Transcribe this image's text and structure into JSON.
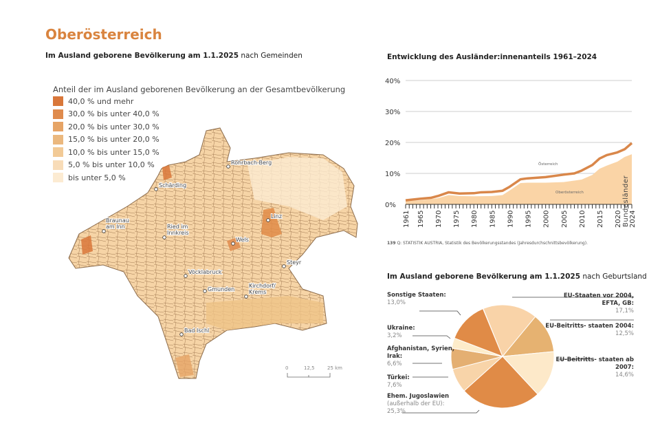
{
  "page": {
    "title": "Oberösterreich",
    "side_label": "Bundesländer"
  },
  "map": {
    "subtitle_bold": "Im Ausland geborene Bevölkerung am 1.1.2025",
    "subtitle_rest": " nach Gemeinden",
    "legend_title": "Anteil der im Ausland geborenen Bevölkerung an der Gesamtbevölkerung",
    "legend": [
      {
        "label": "40,0 % und mehr",
        "color": "#d9773a"
      },
      {
        "label": "30,0 % bis unter 40,0 %",
        "color": "#df8b4d"
      },
      {
        "label": "20,0 % bis unter 30,0 %",
        "color": "#e6a466"
      },
      {
        "label": "15,0 % bis unter 20,0 %",
        "color": "#ebb87e"
      },
      {
        "label": "10,0 % bis unter 15,0 %",
        "color": "#f2ca96"
      },
      {
        "label": "5,0 % bis unter 10,0 %",
        "color": "#f8dcb8"
      },
      {
        "label": "bis unter 5,0 %",
        "color": "#fcebd2"
      }
    ],
    "cities": [
      "Rohrbach-Berg",
      "Schärding",
      "Braunau am Inn",
      "Ried im Innkreis",
      "Linz",
      "Wels",
      "Steyr",
      "Vöcklabruck",
      "Gmunden",
      "Kirchdorf/ Krems",
      "Bad Ischl"
    ],
    "scale": [
      "0",
      "12,5",
      "25 km"
    ]
  },
  "chart_data": [
    {
      "type": "area",
      "title": "Entwicklung des Ausländer:innenanteils 1961–2024",
      "ylim": [
        0,
        40
      ],
      "yticks": [
        "0%",
        "10%",
        "20%",
        "30%",
        "40%"
      ],
      "xticks": [
        "1961",
        "1965",
        "1970",
        "1975",
        "1980",
        "1985",
        "1990",
        "1995",
        "2000",
        "2005",
        "2010",
        "2015",
        "2020",
        "2024"
      ],
      "grid": true,
      "series": [
        {
          "name": "Österreich",
          "style": "line",
          "color": "#d9874a",
          "x": [
            1961,
            1965,
            1968,
            1970,
            1973,
            1976,
            1980,
            1982,
            1985,
            1988,
            1990,
            1993,
            1995,
            2000,
            2005,
            2008,
            2010,
            2013,
            2015,
            2017,
            2020,
            2022,
            2024
          ],
          "y": [
            1.3,
            1.8,
            2.1,
            2.7,
            3.9,
            3.5,
            3.6,
            3.9,
            4.0,
            4.4,
            5.7,
            8.1,
            8.4,
            8.8,
            9.6,
            10.0,
            10.9,
            12.7,
            14.8,
            15.9,
            16.8,
            17.8,
            19.8
          ]
        },
        {
          "name": "Oberösterreich",
          "style": "area",
          "color": "#fad4a6",
          "x": [
            1961,
            1965,
            1970,
            1973,
            1976,
            1980,
            1985,
            1988,
            1990,
            1993,
            1995,
            2000,
            2005,
            2010,
            2013,
            2015,
            2017,
            2020,
            2022,
            2024
          ],
          "y": [
            1.0,
            1.3,
            2.0,
            3.0,
            2.7,
            2.6,
            2.7,
            3.0,
            4.5,
            6.9,
            7.0,
            7.0,
            7.2,
            8.0,
            9.5,
            11.5,
            12.5,
            13.8,
            15.3,
            16.2
          ]
        }
      ],
      "source_num": "139",
      "source": " Q: STATISTIK AUSTRIA, Statistik des Bevölkerungsstandes (Jahresdurchschnittsbevölkerung)."
    },
    {
      "type": "pie",
      "title_bold": "Im Ausland geborene Bevölkerung am 1.1.2025",
      "title_rest": " nach Geburtsland",
      "slices": [
        {
          "label": "EU-Staaten vor 2004, EFTA, GB:",
          "value": "17,1%",
          "v": 17.1,
          "color": "#f9d3a8"
        },
        {
          "label": "EU-Beitritts- staaten 2004:",
          "value": "12,5%",
          "v": 12.5,
          "color": "#e6b271"
        },
        {
          "label": "EU-Beitritts- staaten ab 2007:",
          "value": "14,6%",
          "v": 14.6,
          "color": "#fde9c9"
        },
        {
          "label": "Ehem. Jugoslawien",
          "label2": "(außerhalb der EU):",
          "value": "25,3%",
          "v": 25.3,
          "color": "#e08b47"
        },
        {
          "label": "Türkei:",
          "value": "7,6%",
          "v": 7.6,
          "color": "#f8d4a9"
        },
        {
          "label": "Afghanistan, Syrien, Irak:",
          "value": "6,6%",
          "v": 6.6,
          "color": "#e4af72"
        },
        {
          "label": "Ukraine:",
          "value": "3,2%",
          "v": 3.2,
          "color": "#fdecca"
        },
        {
          "label": "Sonstige Staaten:",
          "value": "13,0%",
          "v": 13.0,
          "color": "#e08b47"
        }
      ]
    }
  ]
}
